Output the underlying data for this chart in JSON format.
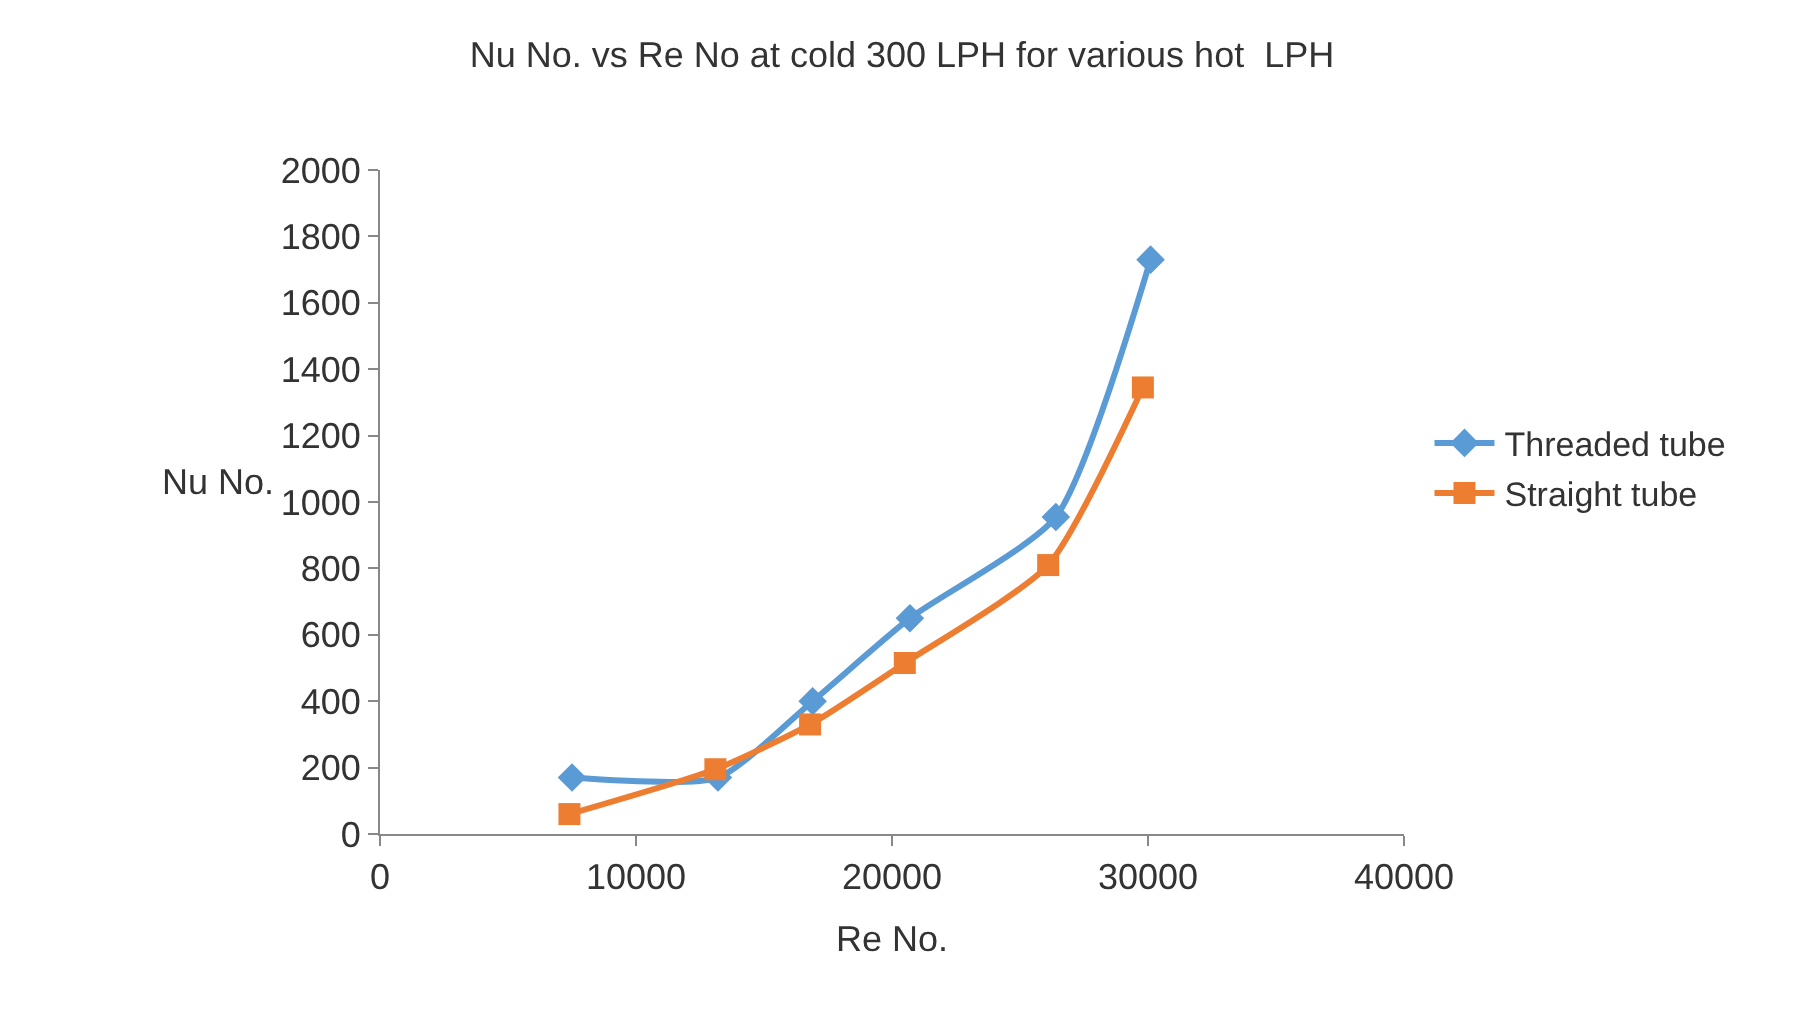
{
  "chart_data": {
    "type": "line",
    "title": "Nu No. vs Re No at cold 300 LPH for various hot  LPH",
    "xlabel": "Re No.",
    "ylabel": "Nu No.",
    "xlim": [
      0,
      40000
    ],
    "xticks": [
      0,
      10000,
      20000,
      30000,
      40000
    ],
    "ylim": [
      0,
      2000
    ],
    "yticks": [
      0,
      200,
      400,
      600,
      800,
      1000,
      1200,
      1400,
      1600,
      1800,
      2000
    ],
    "legend": "right",
    "series": [
      {
        "name": "Threaded tube",
        "color": "#5b9bd5",
        "marker": "diamond",
        "x": [
          7500,
          13200,
          16900,
          20700,
          26400,
          30100
        ],
        "values": [
          170,
          170,
          400,
          650,
          955,
          1730
        ]
      },
      {
        "name": "Straight tube",
        "color": "#ed7d31",
        "marker": "square",
        "x": [
          7400,
          13100,
          16800,
          20500,
          26100,
          29800
        ],
        "values": [
          60,
          195,
          330,
          515,
          810,
          1345
        ]
      }
    ]
  }
}
